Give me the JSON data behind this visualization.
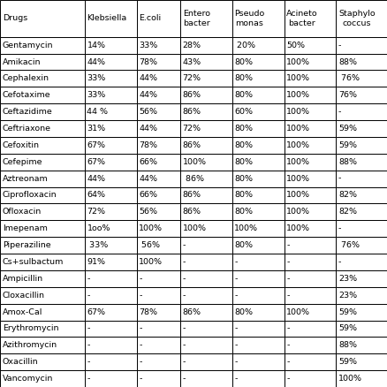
{
  "columns": [
    "Drugs",
    "Klebsiella",
    "E.coli",
    "Entero\nbacter",
    "Pseudo\nmonas",
    "Acineto\nbacter",
    "Staphylo\ncoccus"
  ],
  "rows": [
    [
      "Gentamycin",
      "14%",
      "33%",
      "28%",
      " 20%",
      "50%",
      "-"
    ],
    [
      "Amikacin",
      "44%",
      "78%",
      "43%",
      "80%",
      "100%",
      "88%"
    ],
    [
      "Cephalexin",
      "33%",
      "44%",
      "72%",
      "80%",
      "100%",
      " 76%"
    ],
    [
      "Cefotaxime",
      "33%",
      "44%",
      "86%",
      "80%",
      "100%",
      "76%"
    ],
    [
      "Ceftazidime",
      "44 %",
      "56%",
      "86%",
      "60%",
      "100%",
      "-"
    ],
    [
      "Ceftriaxone",
      "31%",
      "44%",
      "72%",
      "80%",
      "100%",
      "59%"
    ],
    [
      "Cefoxitin",
      "67%",
      "78%",
      "86%",
      "80%",
      "100%",
      "59%"
    ],
    [
      "Cefepime",
      "67%",
      "66%",
      "100%",
      "80%",
      "100%",
      "88%"
    ],
    [
      "Aztreonam",
      "44%",
      "44%",
      " 86%",
      "80%",
      "100%",
      "-"
    ],
    [
      "Ciprofloxacin",
      "64%",
      "66%",
      "86%",
      "80%",
      "100%",
      "82%"
    ],
    [
      "Ofloxacin",
      "72%",
      "56%",
      "86%",
      "80%",
      "100%",
      "82%"
    ],
    [
      "Imepenam",
      "1oo%",
      "100%",
      "100%",
      "100%",
      "100%",
      "-"
    ],
    [
      "Piperaziline",
      " 33%",
      " 56%",
      "-",
      "80%",
      "-",
      " 76%"
    ],
    [
      "Cs+sulbactum",
      "91%",
      "100%",
      "-",
      "-",
      "-",
      "-"
    ],
    [
      "Ampicillin",
      "-",
      "-",
      "-",
      "-",
      "-",
      "23%"
    ],
    [
      "Cloxacillin",
      "-",
      "-",
      "-",
      "-",
      "-",
      "23%"
    ],
    [
      "Amox-Cal",
      "67%",
      "78%",
      "86%",
      "80%",
      "100%",
      "59%"
    ],
    [
      "Erythromycin",
      "-",
      "-",
      "-",
      "-",
      "-",
      "59%"
    ],
    [
      "Azithromycin",
      "-",
      "-",
      "-",
      "-",
      "-",
      "88%"
    ],
    [
      "Oxacillin",
      "-",
      "-",
      "-",
      "-",
      "-",
      "59%"
    ],
    [
      "Vancomycin",
      "-",
      "-",
      "-",
      "-",
      "-",
      "100%"
    ]
  ],
  "col_widths": [
    1.55,
    0.95,
    0.8,
    0.95,
    0.95,
    0.95,
    0.95
  ],
  "line_color": "#000000",
  "text_color": "#000000",
  "font_size": 6.8,
  "header_font_size": 6.8,
  "fig_width": 4.39,
  "fig_height": 4.38,
  "dpi": 100
}
